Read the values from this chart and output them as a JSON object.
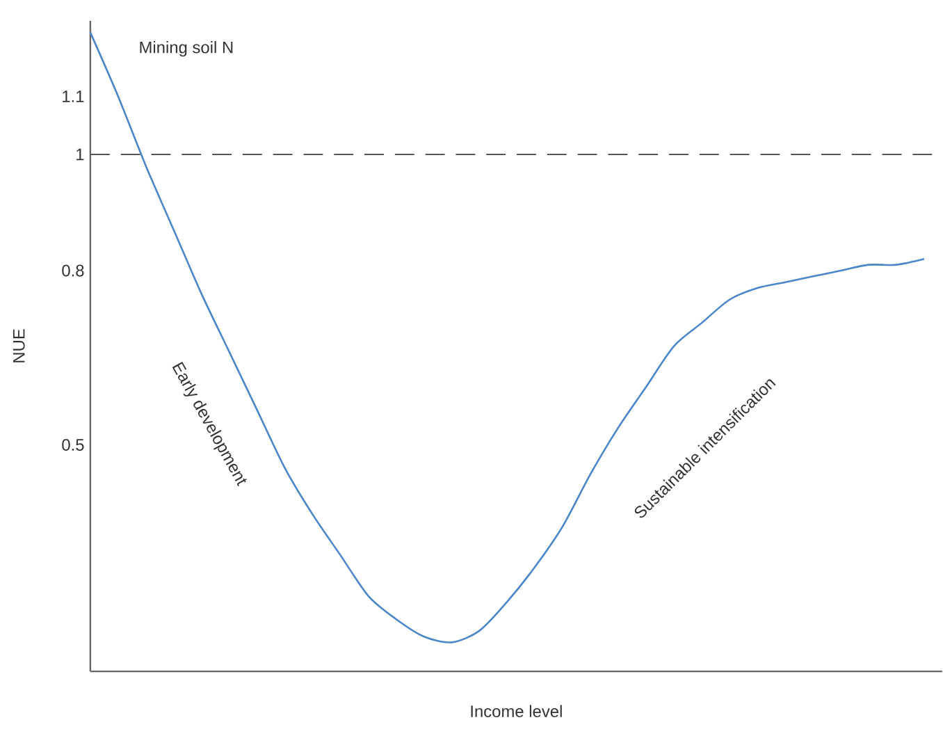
{
  "chart_data": {
    "type": "line",
    "xlabel": "Income level",
    "ylabel": "NUE",
    "categories": [
      null,
      null,
      null,
      null,
      null,
      null,
      null,
      null,
      null,
      null,
      null,
      null,
      null,
      null,
      null,
      null,
      null,
      null,
      null,
      null,
      null,
      null,
      null,
      null,
      null,
      null,
      null,
      null,
      null,
      null,
      null
    ],
    "series": [
      {
        "color": "#4a86c8",
        "values": [
          1.21,
          1.1,
          0.98,
          0.87,
          0.76,
          0.66,
          0.56,
          0.46,
          0.38,
          0.31,
          0.24,
          0.2,
          0.17,
          0.16,
          0.18,
          0.23,
          0.29,
          0.36,
          0.45,
          0.53,
          0.6,
          0.67,
          0.71,
          0.75,
          0.77,
          0.78,
          0.79,
          0.8,
          0.81,
          0.81,
          0.82
        ]
      }
    ],
    "ylim": [
      0.11,
      1.23
    ],
    "yticks": [
      0.5,
      0.8,
      1,
      1.1
    ],
    "ref_lines": [
      {
        "axis": "y",
        "value": 1,
        "color": "#555555",
        "line_style": "dashed"
      }
    ],
    "annotations": [
      "Mining soil N",
      "Early development",
      "Sustainable intensification"
    ],
    "grid": false,
    "marker": "none",
    "line_style": "solid"
  }
}
